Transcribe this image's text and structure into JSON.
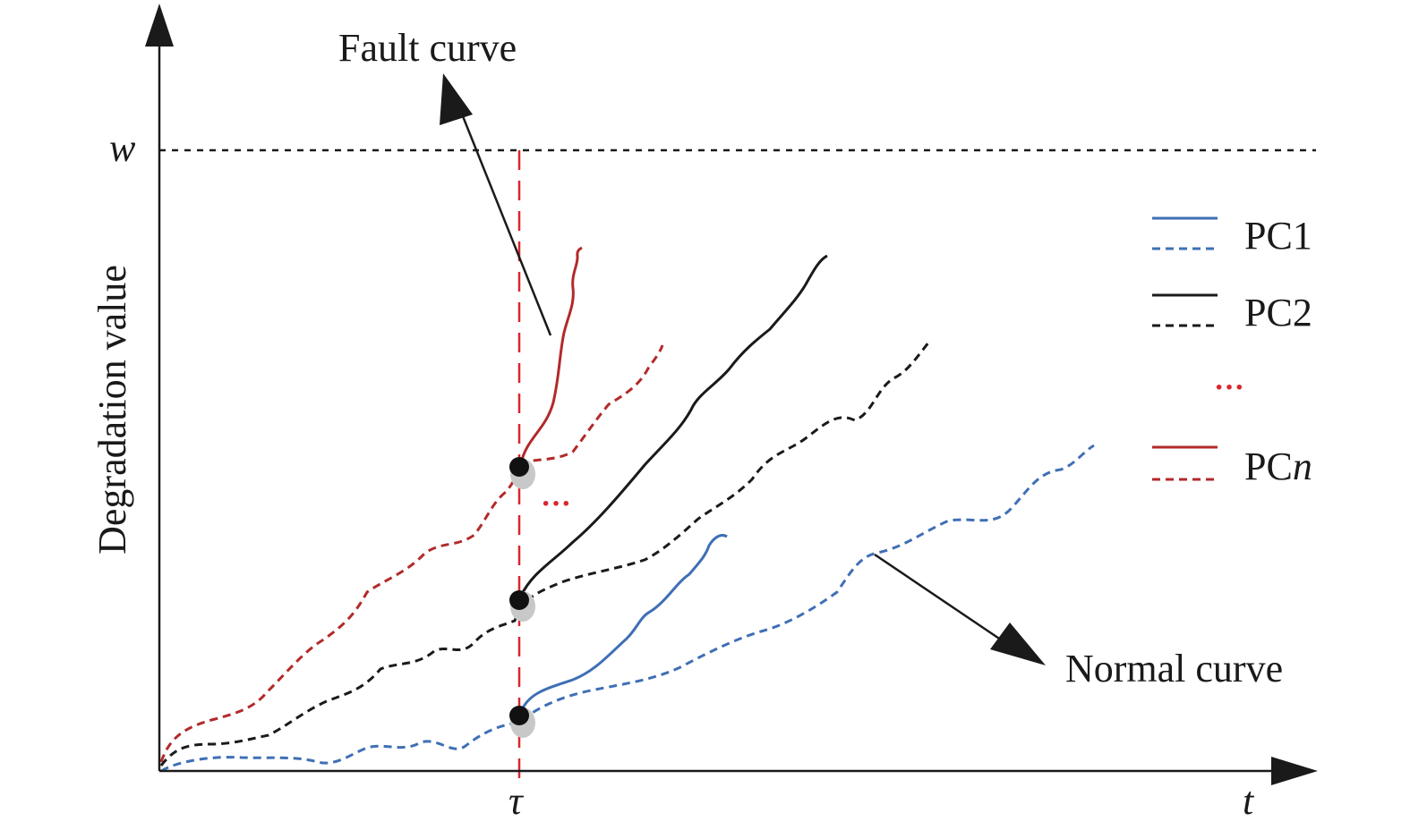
{
  "labels": {
    "ylabel": "Degradation value",
    "xlabel": "t",
    "threshold": "w",
    "tau": "τ",
    "fault_callout": "Fault curve",
    "normal_callout": "Normal curve",
    "mid_ellipsis": "···",
    "legend_ellipsis": "···"
  },
  "legend": [
    {
      "label": "PC1",
      "prefix": "PC",
      "suffix": "1",
      "italic_suffix": false,
      "color": "#3f6fb5"
    },
    {
      "label": "PC2",
      "prefix": "PC",
      "suffix": "2",
      "italic_suffix": false,
      "color": "#1a1a1a"
    },
    {
      "label": "PCn",
      "prefix": "PC",
      "suffix": "n",
      "italic_suffix": true,
      "color": "#b22a2a"
    }
  ],
  "colors": {
    "axis": "#1a1a1a",
    "tau_line": "#d9262e",
    "ellipsis": "#d9262e",
    "pc1": "#3f6fb5",
    "pc2": "#1a1a1a",
    "pcn": "#b22a2a",
    "node_outer": "#c8c8c8",
    "node_inner": "#111111"
  }
}
